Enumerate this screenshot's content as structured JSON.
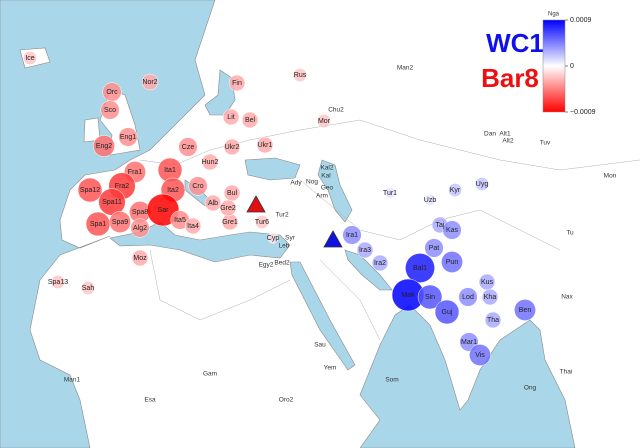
{
  "map": {
    "colorbar": {
      "title": "Nga",
      "lim": [
        -0.0009,
        0.0009
      ],
      "ticks": [
        0.0009,
        0,
        {
          "value": -0.0009,
          "label": "−0.0009"
        }
      ],
      "colors": [
        "#ff0000",
        "#ffffff",
        "#0000ff"
      ]
    },
    "legend": {
      "blue_label": "WC1",
      "red_label": "Bar8",
      "blue_color": "#1010ee",
      "red_color": "#ee1010"
    },
    "sites": [
      {
        "label": "Ice",
        "value": -0.0002
      },
      {
        "label": "Nor2",
        "value": -0.0003
      },
      {
        "label": "Orc",
        "value": -0.0004
      },
      {
        "label": "Sco",
        "value": -0.0004
      },
      {
        "label": "Eng1",
        "value": -0.0004
      },
      {
        "label": "Eng2",
        "value": -0.0005
      },
      {
        "label": "Fin",
        "value": -0.0003
      },
      {
        "label": "Lit",
        "value": -0.0003
      },
      {
        "label": "Bel",
        "value": -0.0003
      },
      {
        "label": "Ukr1",
        "value": -0.0003
      },
      {
        "label": "Ukr2",
        "value": -0.0003
      },
      {
        "label": "Cze",
        "value": -0.0004
      },
      {
        "label": "Hun2",
        "value": -0.0003
      },
      {
        "label": "Rus",
        "value": -0.0002
      },
      {
        "label": "Mor",
        "value": -0.0002
      },
      {
        "label": "Fra1",
        "value": -0.0005
      },
      {
        "label": "Fra2",
        "value": -0.0007
      },
      {
        "label": "Spa12",
        "value": -0.0006
      },
      {
        "label": "Spa11",
        "value": -0.0007
      },
      {
        "label": "Spa8",
        "value": -0.0005
      },
      {
        "label": "Spa9",
        "value": -0.0005
      },
      {
        "label": "Spa1",
        "value": -0.0006
      },
      {
        "label": "Alg2",
        "value": -0.0004
      },
      {
        "label": "Ita1",
        "value": -0.0006
      },
      {
        "label": "Ita2",
        "value": -0.0006
      },
      {
        "label": "Cro",
        "value": -0.0004
      },
      {
        "label": "Bul",
        "value": -0.0003
      },
      {
        "label": "Alb",
        "value": -0.0003
      },
      {
        "label": "Sar",
        "value": -0.0009
      },
      {
        "label": "Ita5",
        "value": -0.0004
      },
      {
        "label": "Ita4",
        "value": -0.0003
      },
      {
        "label": "Gre1",
        "value": -0.0003
      },
      {
        "label": "Gre2",
        "value": -0.0003
      },
      {
        "label": "Tur6",
        "value": -0.0002
      },
      {
        "label": "Moz",
        "value": -0.0003
      },
      {
        "label": "Spa13",
        "value": -0.0002
      },
      {
        "label": "Sah",
        "value": -0.0002
      },
      {
        "label": "Cyp",
        "value": -0.0001
      },
      {
        "label": "Tur1",
        "value": 0.0001
      },
      {
        "label": "Taj",
        "value": 0.0003
      },
      {
        "label": "Uzb",
        "value": 0.0001
      },
      {
        "label": "Kyr",
        "value": 0.0002
      },
      {
        "label": "Uyg",
        "value": 0.0002
      },
      {
        "label": "Ira1",
        "value": 0.0004
      },
      {
        "label": "Ira3",
        "value": 0.0003
      },
      {
        "label": "Ira2",
        "value": 0.0003
      },
      {
        "label": "Bal1",
        "value": 0.0008
      },
      {
        "label": "Mak",
        "value": 0.0009
      },
      {
        "label": "Sin",
        "value": 0.0006
      },
      {
        "label": "Pat",
        "value": 0.0004
      },
      {
        "label": "Pun",
        "value": 0.0005
      },
      {
        "label": "Kas",
        "value": 0.0004
      },
      {
        "label": "Guj",
        "value": 0.0006
      },
      {
        "label": "Lod",
        "value": 0.0004
      },
      {
        "label": "Kus",
        "value": 0.0003
      },
      {
        "label": "Kha",
        "value": 0.0003
      },
      {
        "label": "Tha",
        "value": 0.0003
      },
      {
        "label": "Ben",
        "value": 0.0005
      },
      {
        "label": "Mar1",
        "value": 0.0004
      },
      {
        "label": "Vis",
        "value": 0.0005
      }
    ],
    "place_labels": [
      "Man2",
      "Chu2",
      "Dan",
      "Alt1",
      "Alt2",
      "Tuv",
      "Mon",
      "Tu",
      "Kal2",
      "Kal",
      "Ady",
      "Nog",
      "Geo",
      "Arm",
      "Tur2",
      "Syr",
      "Leb",
      "Egy2",
      "Bed2",
      "Sau",
      "Yem",
      "Som",
      "Nax",
      "Gam",
      "Oro2",
      "Man1",
      "Esa",
      "Ong",
      "Thai"
    ]
  }
}
